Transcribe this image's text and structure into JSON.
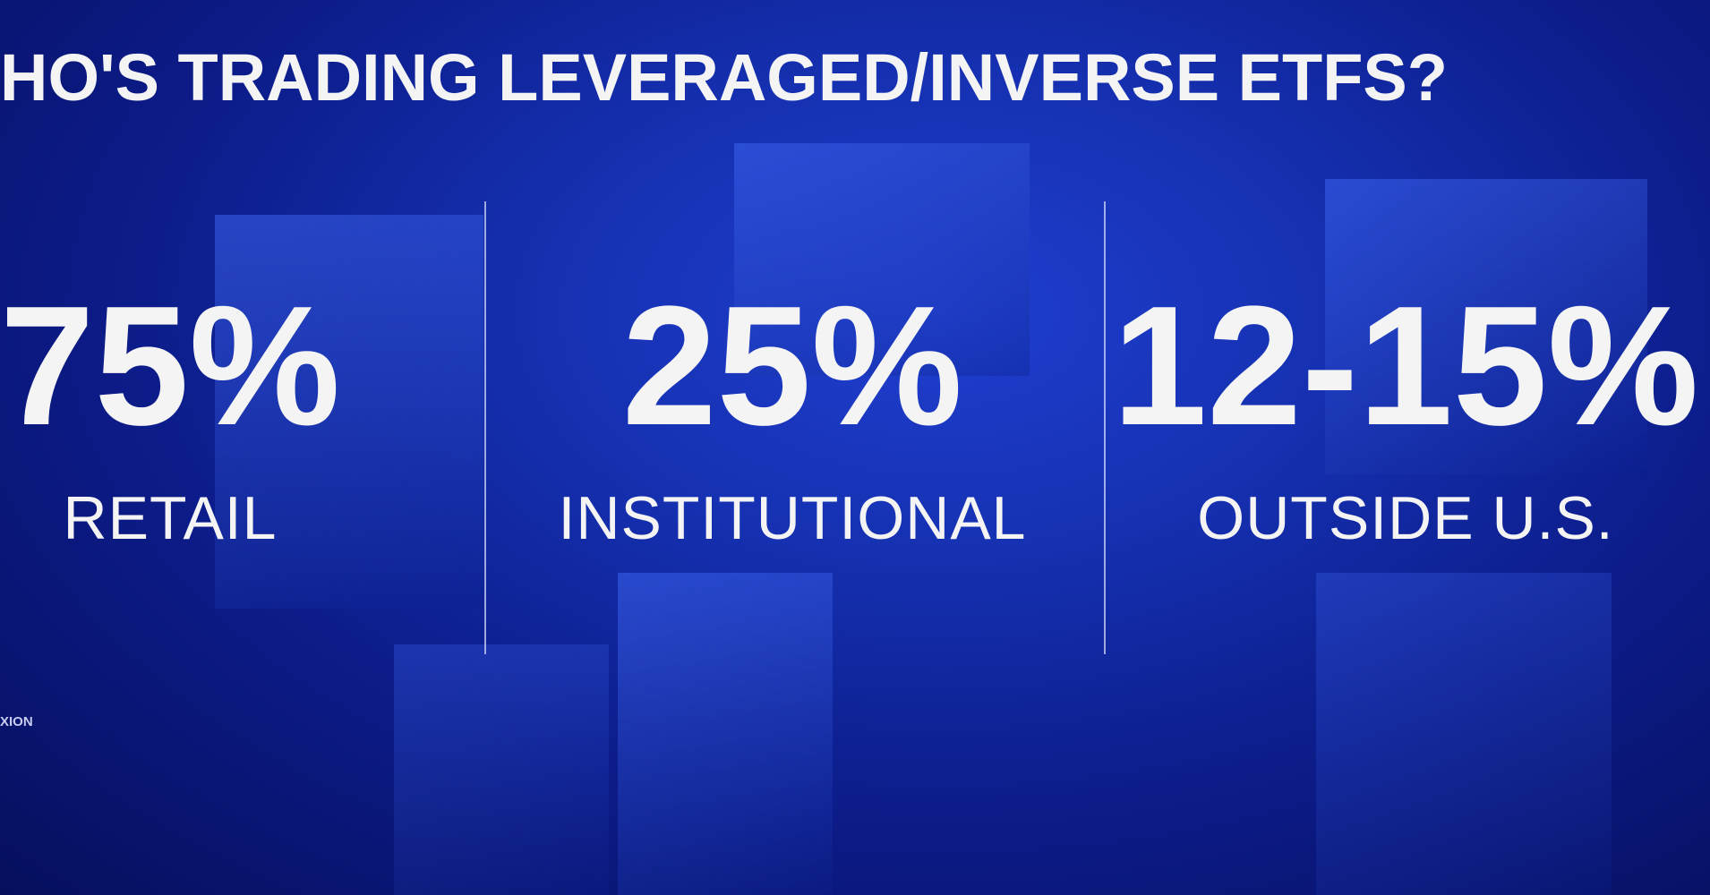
{
  "title": "HO'S TRADING LEVERAGED/INVERSE ETFS?",
  "stats": [
    {
      "value": "75%",
      "label": "RETAIL"
    },
    {
      "value": "25%",
      "label": "INSTITUTIONAL"
    },
    {
      "value": "12-15%",
      "label": "OUTSIDE U.S."
    }
  ],
  "source": "XION",
  "colors": {
    "background": "#0c1c8a",
    "text": "#f4f4f4"
  }
}
